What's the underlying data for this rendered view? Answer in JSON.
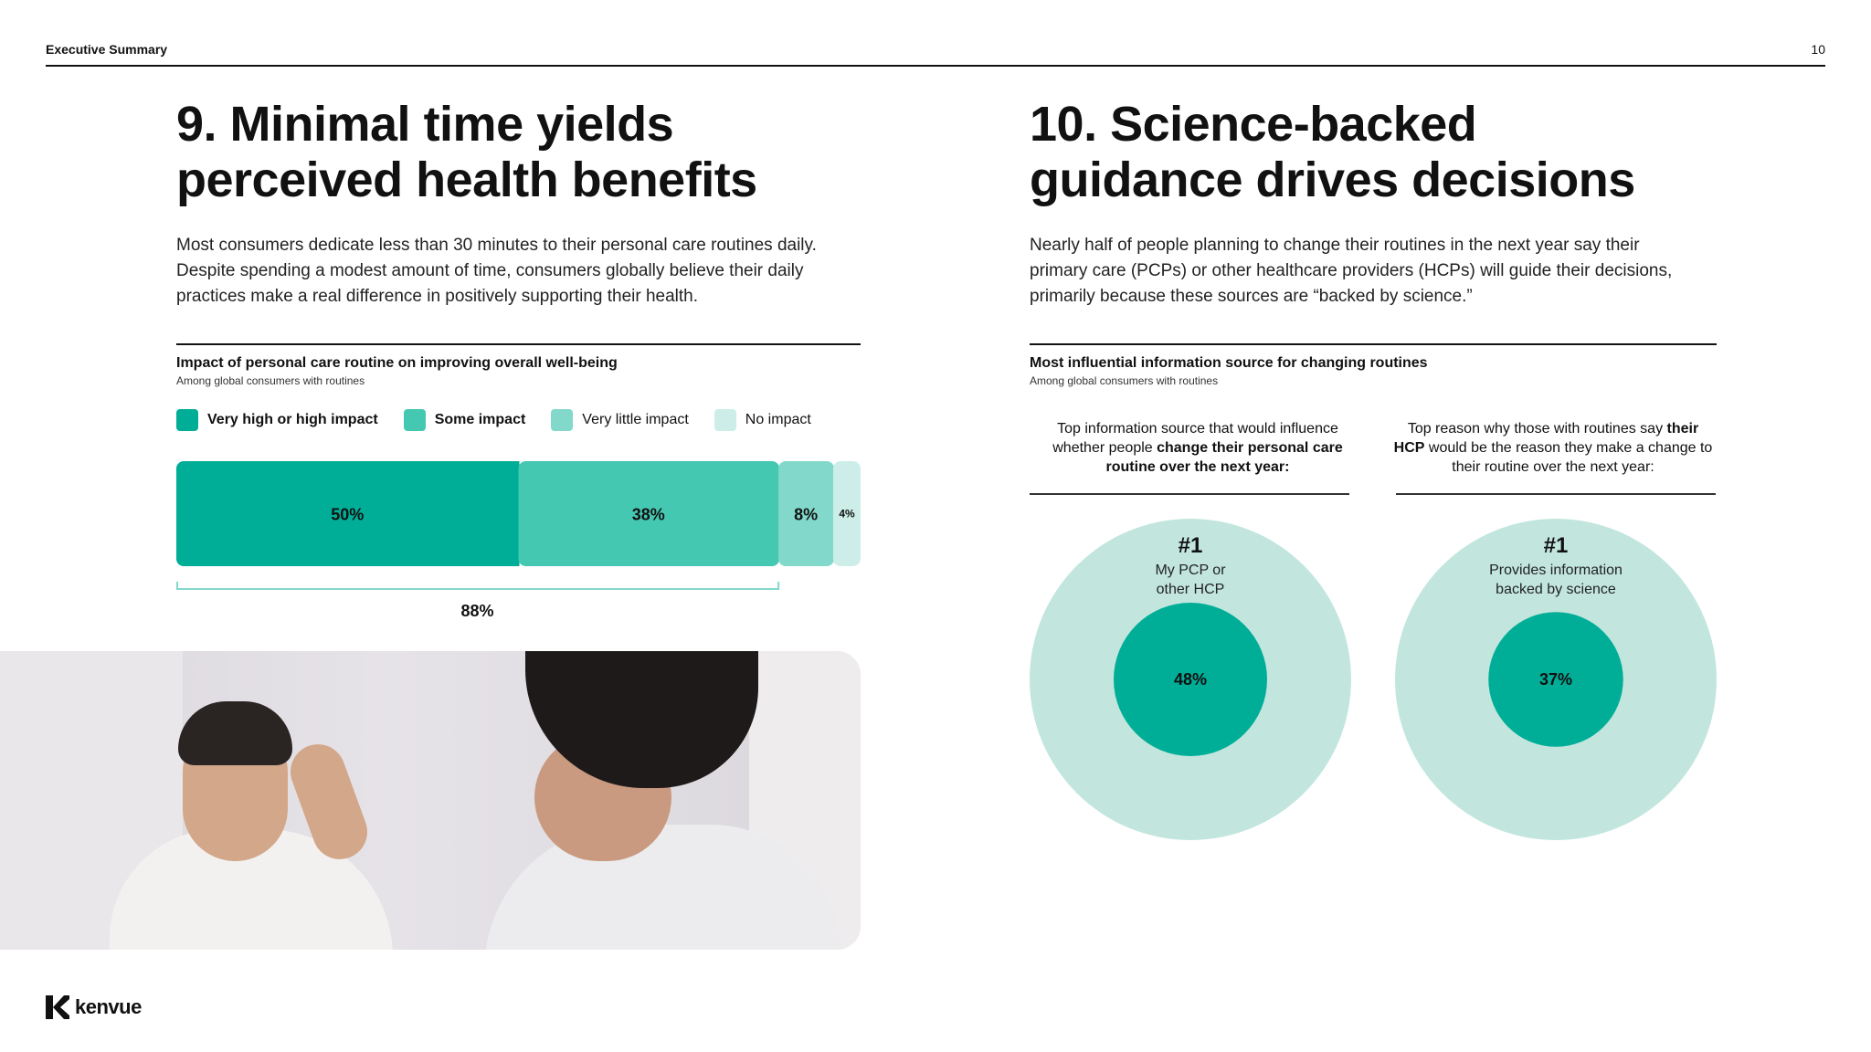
{
  "header": {
    "label": "Executive Summary",
    "page_number": "10"
  },
  "left": {
    "title": "9. Minimal time yields\nperceived health benefits",
    "body": "Most consumers dedicate less than 30 minutes to their personal care routines daily. Despite spending a modest amount of time, consumers globally believe their daily practices make a real difference in positively supporting their health.",
    "chart_title": "Impact of personal care routine on improving overall well-being",
    "chart_subtitle": "Among global consumers with routines",
    "legend": [
      {
        "label": "Very high or high impact",
        "color": "#00ae98",
        "bold": true
      },
      {
        "label": "Some impact",
        "color": "#44c8b2",
        "bold": true
      },
      {
        "label": "Very little impact",
        "color": "#82d9cb",
        "bold": false
      },
      {
        "label": "No impact",
        "color": "#cdeee8",
        "bold": false
      }
    ],
    "total_label": "88%"
  },
  "right": {
    "title": "10. Science-backed\nguidance drives decisions",
    "body": "Nearly half of people planning to change their routines in the next year say their primary care (PCPs) or other healthcare providers (HCPs) will guide their decisions, primarily because these sources are “backed by science.”",
    "chart_title": "Most influential information source for changing routines",
    "chart_subtitle": "Among global consumers with routines",
    "col1": {
      "head_pre": "Top information source that would influence whether people ",
      "head_bold": "change their personal care routine over the next year:",
      "rank": "#1",
      "caption_line1": "My PCP or",
      "caption_line2": "other HCP",
      "value_label": "48%"
    },
    "col2": {
      "head_pre": "Top reason why those with routines say ",
      "head_bold": "their HCP",
      "head_post": " would be the reason they make a change to their routine over the next year:",
      "rank": "#1",
      "caption_line1": "Provides information",
      "caption_line2": "backed by science",
      "value_label": "37%"
    },
    "circle_colors": {
      "outer": "#c2e6de",
      "inner": "#00ae98"
    }
  },
  "chart_data": [
    {
      "type": "bar",
      "stacked": true,
      "orientation": "horizontal",
      "title": "Impact of personal care routine on improving overall well-being",
      "subtitle": "Among global consumers with routines",
      "series": [
        {
          "name": "Very high or high impact",
          "values": [
            50
          ],
          "label": "50%",
          "color": "#00ae98"
        },
        {
          "name": "Some impact",
          "values": [
            38
          ],
          "label": "38%",
          "color": "#44c8b2"
        },
        {
          "name": "Very little impact",
          "values": [
            8
          ],
          "label": "8%",
          "color": "#82d9cb"
        },
        {
          "name": "No impact",
          "values": [
            4
          ],
          "label": "4%",
          "color": "#cdeee8"
        }
      ],
      "xlim": [
        0,
        100
      ],
      "annotation": "88%"
    },
    {
      "type": "pie",
      "title": "Most influential information source for changing routines",
      "items": [
        {
          "rank": "#1",
          "label": "My PCP or other HCP",
          "value": 48
        },
        {
          "rank": "#1",
          "label": "Provides information backed by science",
          "value": 37
        }
      ]
    }
  ],
  "footer": {
    "brand": "kenvue"
  }
}
